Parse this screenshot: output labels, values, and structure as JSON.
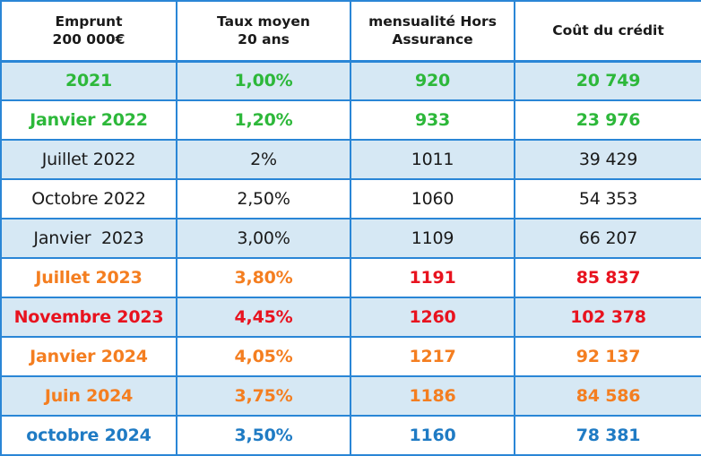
{
  "headers": [
    [
      "Emprunt",
      "200 000€"
    ],
    [
      "Taux moyen",
      "20 ans"
    ],
    [
      "mensualité Hors",
      "Assurance"
    ],
    [
      "Coût du crédit"
    ]
  ],
  "colors": {
    "border": "#2a86d6",
    "shade": "#d6e8f4",
    "green": "#2db83a",
    "orange": "#f47e20",
    "red": "#e8131f",
    "blue": "#1f7bc4",
    "black": "#1a1a1a"
  },
  "rows": [
    {
      "cells": [
        "2021",
        "1,00%",
        "920",
        "20 749"
      ],
      "colors": [
        "green",
        "green",
        "green",
        "green"
      ],
      "bold": true,
      "shade": true
    },
    {
      "cells": [
        "Janvier 2022",
        "1,20%",
        "933",
        "23 976"
      ],
      "colors": [
        "green",
        "green",
        "green",
        "green"
      ],
      "bold": true,
      "shade": false
    },
    {
      "cells": [
        "Juillet 2022",
        "2%",
        "1011",
        "39 429"
      ],
      "colors": [
        "black",
        "black",
        "black",
        "black"
      ],
      "bold": false,
      "shade": true
    },
    {
      "cells": [
        "Octobre 2022",
        "2,50%",
        "1060",
        "54 353"
      ],
      "colors": [
        "black",
        "black",
        "black",
        "black"
      ],
      "bold": false,
      "shade": false
    },
    {
      "cells": [
        "Janvier  2023",
        "3,00%",
        "1109",
        "66 207"
      ],
      "colors": [
        "black",
        "black",
        "black",
        "black"
      ],
      "bold": false,
      "shade": true
    },
    {
      "cells": [
        "Juillet 2023",
        "3,80%",
        "1191",
        "85 837"
      ],
      "colors": [
        "orange",
        "orange",
        "red",
        "red"
      ],
      "bold": true,
      "shade": false
    },
    {
      "cells": [
        "Novembre 2023",
        "4,45%",
        "1260",
        "102 378"
      ],
      "colors": [
        "red",
        "red",
        "red",
        "red"
      ],
      "bold": true,
      "shade": true
    },
    {
      "cells": [
        "Janvier 2024",
        "4,05%",
        "1217",
        "92 137"
      ],
      "colors": [
        "orange",
        "orange",
        "orange",
        "orange"
      ],
      "bold": true,
      "shade": false
    },
    {
      "cells": [
        "Juin 2024",
        "3,75%",
        "1186",
        "84 586"
      ],
      "colors": [
        "orange",
        "orange",
        "orange",
        "orange"
      ],
      "bold": true,
      "shade": true
    },
    {
      "cells": [
        "octobre 2024",
        "3,50%",
        "1160",
        "78 381"
      ],
      "colors": [
        "blue",
        "blue",
        "blue",
        "blue"
      ],
      "bold": true,
      "shade": false
    }
  ]
}
